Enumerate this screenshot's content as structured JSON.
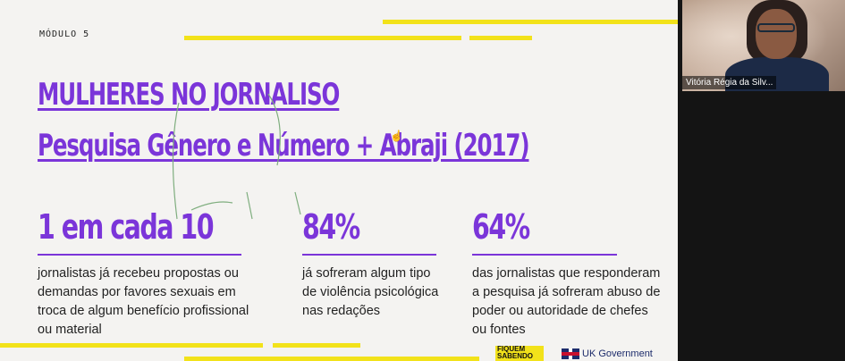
{
  "slide": {
    "module": "MÓDULO 5",
    "title_line1": "MULHERES NO JORNALISO",
    "title_line2": "Pesquisa Gênero e Número + Abraji (2017)",
    "stats": [
      {
        "value": "1 em cada 10",
        "description": "jornalistas já recebeu propostas ou demandas por favores sexuais em troca de algum benefício profissional ou material"
      },
      {
        "value": "84%",
        "description": "já sofreram algum tipo de violência psicológica nas redações"
      },
      {
        "value": "64%",
        "description": "das jornalistas que responderam a pesquisa já sofreram abuso de poder ou autoridade de chefes ou fontes"
      }
    ],
    "logos": {
      "fiquem_sabendo": "FIQUEM SABENDO",
      "uk_government": "UK Government"
    },
    "accent_color": "#7b35d9",
    "stripe_color": "#f2e21a"
  },
  "video": {
    "participant_name": "Vitória Régia da Silv..."
  }
}
